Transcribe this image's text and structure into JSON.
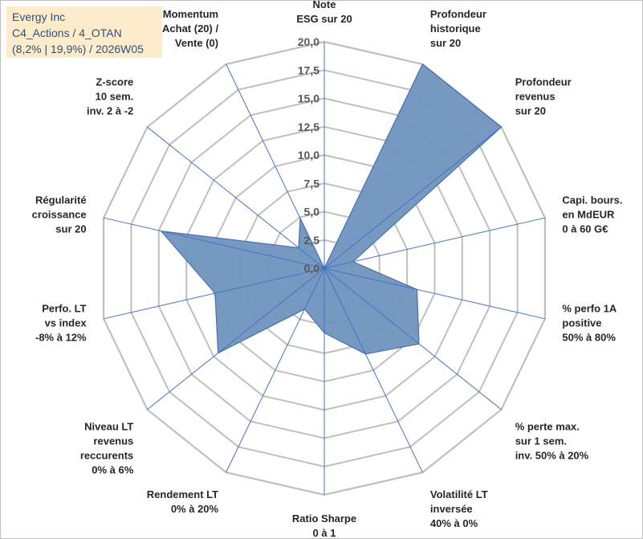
{
  "header": {
    "line1": "Evergy Inc",
    "line2": "C4_Actions / 4_OTAN",
    "line3": "(8,2% | 19,9%) / 2026W05"
  },
  "chart_data": {
    "type": "radar",
    "title": "Evergy Inc",
    "rmin": 0,
    "rmax": 20,
    "tick_labels": [
      "0,0",
      "2,5",
      "5,0",
      "7,5",
      "10,0",
      "12,5",
      "15,0",
      "17,5",
      "20,0"
    ],
    "categories": [
      {
        "label": [
          "Note",
          "ESG sur 20"
        ],
        "value": 0
      },
      {
        "label": [
          "Profondeur",
          "historique",
          "sur 20"
        ],
        "value": 20
      },
      {
        "label": [
          "Profondeur",
          "revenus",
          "sur 20"
        ],
        "value": 20
      },
      {
        "label": [
          "Capi. bours.",
          "en MdEUR",
          "0 à 60 G€"
        ],
        "value": 2.6
      },
      {
        "label": [
          "% perfo 1A",
          "positive",
          "50% à 80%"
        ],
        "value": 8.4
      },
      {
        "label": [
          "% perte max.",
          "sur 1 sem.",
          "inv. 50% à 20%"
        ],
        "value": 10.7
      },
      {
        "label": [
          "Volatilité LT",
          "inversée",
          "40% à 0%"
        ],
        "value": 8.4
      },
      {
        "label": [
          "Ratio Sharpe",
          "0 à 1"
        ],
        "value": 5.7
      },
      {
        "label": [
          "Rendement LT",
          "0% à 20%"
        ],
        "value": 4.0
      },
      {
        "label": [
          "Niveau LT",
          "revenus",
          "reccurents",
          "0% à 6%"
        ],
        "value": 12.0
      },
      {
        "label": [
          "Perfo. LT",
          "vs index",
          "-8% à 12%"
        ],
        "value": 9.9
      },
      {
        "label": [
          "Régularité",
          "croissance",
          "sur 20"
        ],
        "value": 14.8
      },
      {
        "label": [
          "Z-score",
          "10 sem.",
          "inv. 2 à -2"
        ],
        "value": 2.9
      },
      {
        "label": [
          "Momentum",
          "Achat (20) /",
          "Vente (0)"
        ],
        "value": 4.9
      }
    ],
    "colors": {
      "fill": "#6f93bf",
      "stroke": "#4a72a8",
      "grid": "#bfbfbf",
      "spoke": "#4472c4"
    }
  }
}
